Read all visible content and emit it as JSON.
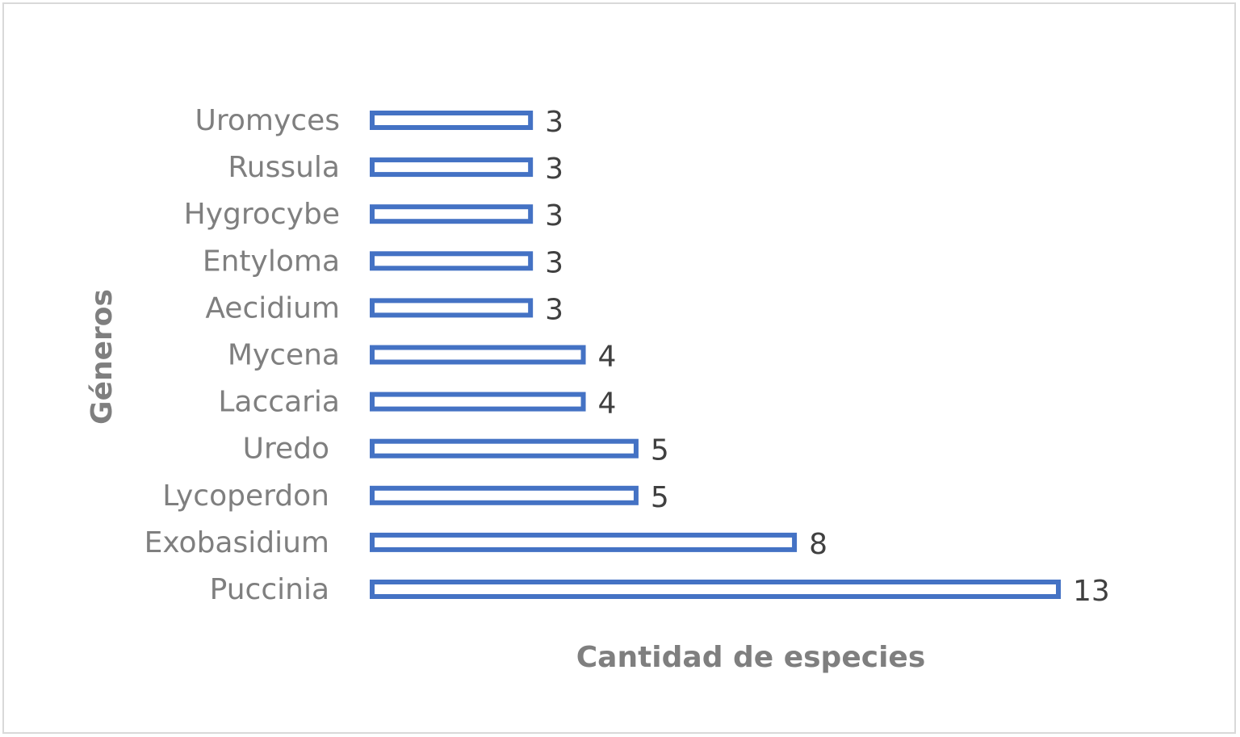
{
  "chart_data": {
    "type": "bar",
    "orientation": "horizontal",
    "categories": [
      "Uromyces",
      "Russula",
      "Hygrocybe",
      "Entyloma",
      "Aecidium",
      "Mycena",
      "Laccaria",
      "Uredo",
      "Lycoperdon",
      "Exobasidium",
      "Puccinia"
    ],
    "values": [
      3,
      3,
      3,
      3,
      3,
      4,
      4,
      5,
      5,
      8,
      13
    ],
    "title": "",
    "xlabel": "Cantidad de especies",
    "ylabel": "Géneros",
    "xlim": [
      0,
      13
    ],
    "grid": false,
    "legend": "none",
    "data_labels": true,
    "bar_style": "outline",
    "bar_color": "#4472c4"
  }
}
